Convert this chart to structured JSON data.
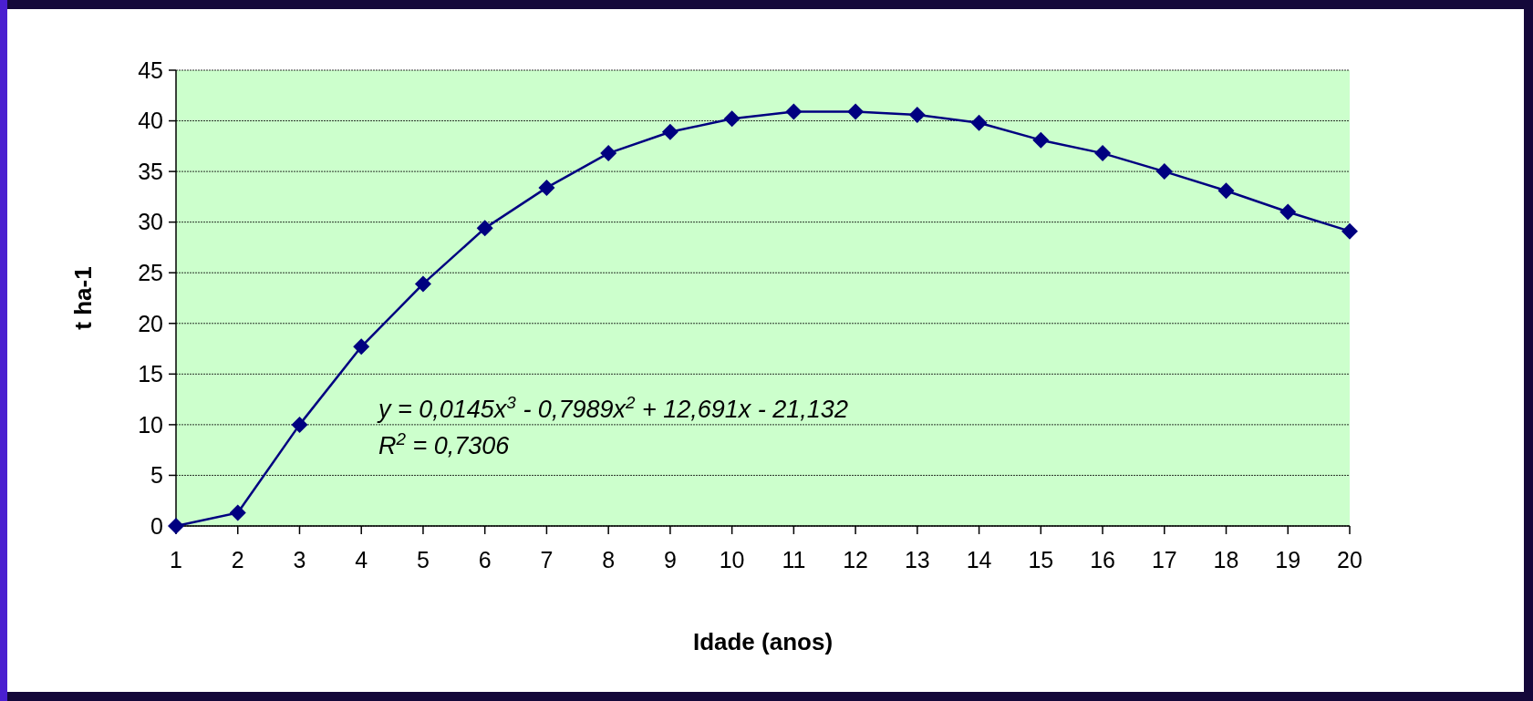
{
  "chart_data": {
    "type": "line",
    "xlabel": "Idade (anos)",
    "ylabel": "t ha-1",
    "x": [
      1,
      2,
      3,
      4,
      5,
      6,
      7,
      8,
      9,
      10,
      11,
      12,
      13,
      14,
      15,
      16,
      17,
      18,
      19,
      20
    ],
    "series": [
      {
        "color": "#000080",
        "values": [
          0,
          1.3,
          10,
          17.7,
          23.9,
          29.4,
          33.4,
          36.8,
          38.9,
          40.2,
          40.9,
          40.9,
          40.6,
          39.8,
          38.1,
          36.8,
          35.0,
          33.1,
          31.0,
          29.1
        ]
      }
    ],
    "xlim": [
      1,
      20
    ],
    "xticks": [
      1,
      2,
      3,
      4,
      5,
      6,
      7,
      8,
      9,
      10,
      11,
      12,
      13,
      14,
      15,
      16,
      17,
      18,
      19,
      20
    ],
    "ylim": [
      0,
      45
    ],
    "yticks": [
      0,
      5,
      10,
      15,
      20,
      25,
      30,
      35,
      40,
      45
    ],
    "grid": "y",
    "marker": "diamond",
    "line_style": "solid",
    "annotations": [
      "y = 0,0145x$^{3}$ - 0,7989x$^{2}$ + 12,691x - 21,132",
      "R$^{2}$ = 0,7306"
    ]
  }
}
